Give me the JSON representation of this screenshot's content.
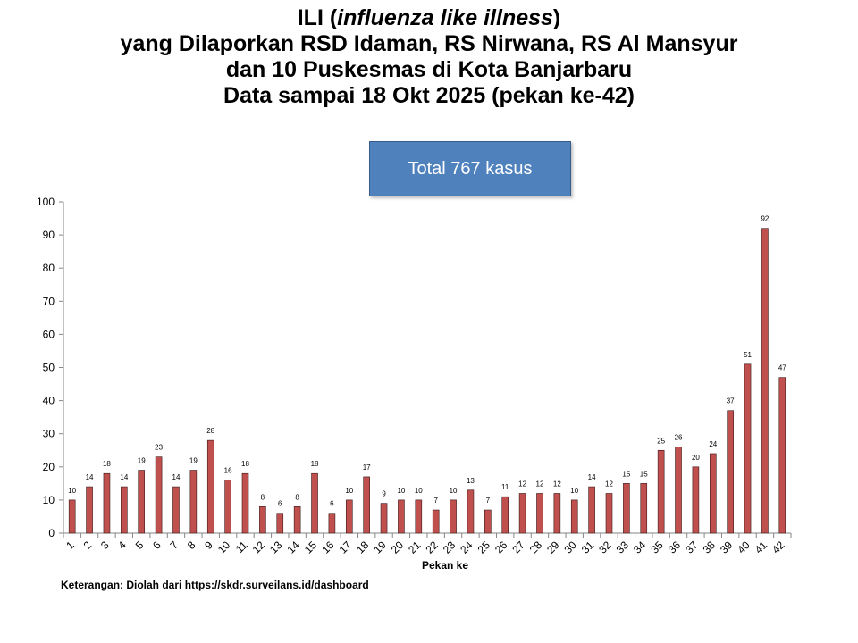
{
  "title": {
    "line1_prefix": "ILI (",
    "line1_italic": "influenza like illness",
    "line1_suffix": ")",
    "line2": "yang Dilaporkan RSD Idaman, RS Nirwana, RS Al Mansyur",
    "line3": "dan 10 Puskesmas di Kota Banjarbaru",
    "line4": "Data sampai 18 Okt 2025 (pekan ke-42)"
  },
  "total_box": {
    "text": "Total 767 kasus",
    "color": "#4f81bd"
  },
  "note": "Keterangan: Diolah dari https://skdr.surveilans.id/dashboard",
  "chart_data": {
    "type": "bar",
    "categories": [
      "1",
      "2",
      "3",
      "4",
      "5",
      "6",
      "7",
      "8",
      "9",
      "10",
      "11",
      "12",
      "13",
      "14",
      "15",
      "16",
      "17",
      "18",
      "19",
      "20",
      "21",
      "22",
      "23",
      "24",
      "25",
      "26",
      "27",
      "28",
      "29",
      "30",
      "31",
      "32",
      "33",
      "34",
      "35",
      "36",
      "37",
      "38",
      "39",
      "40",
      "41",
      "42"
    ],
    "values": [
      10,
      14,
      18,
      14,
      19,
      23,
      14,
      19,
      28,
      16,
      18,
      8,
      6,
      8,
      18,
      6,
      10,
      17,
      9,
      10,
      10,
      7,
      10,
      13,
      7,
      11,
      12,
      12,
      12,
      10,
      14,
      12,
      15,
      15,
      25,
      26,
      20,
      24,
      37,
      51,
      92,
      47
    ],
    "xlabel": "Pekan ke",
    "ylabel": "",
    "ylim": [
      0,
      100
    ],
    "yticks": [
      0,
      10,
      20,
      30,
      40,
      50,
      60,
      70,
      80,
      90,
      100
    ],
    "bar_color": "#c0504d",
    "bar_edge_color": "#3a1a1a",
    "data_labels": true,
    "grid": false,
    "legend": false
  }
}
